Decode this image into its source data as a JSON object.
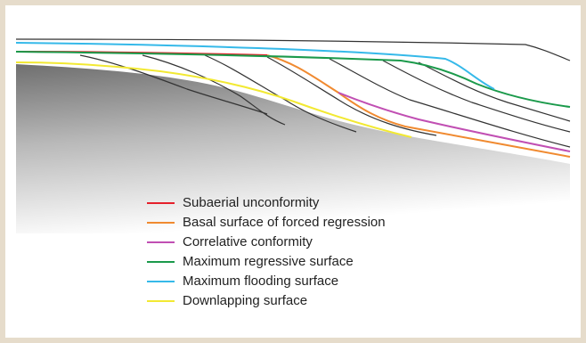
{
  "legend": {
    "items": [
      {
        "label": "Subaerial unconformity",
        "color": "#e5202b"
      },
      {
        "label": "Basal surface of forced regression",
        "color": "#f08a30"
      },
      {
        "label": "Correlative conformity",
        "color": "#c14fb3"
      },
      {
        "label": "Maximum regressive surface",
        "color": "#1b9a4b"
      },
      {
        "label": "Maximum flooding surface",
        "color": "#35b9e9"
      },
      {
        "label": "Downlapping surface",
        "color": "#f2e933"
      }
    ]
  }
}
